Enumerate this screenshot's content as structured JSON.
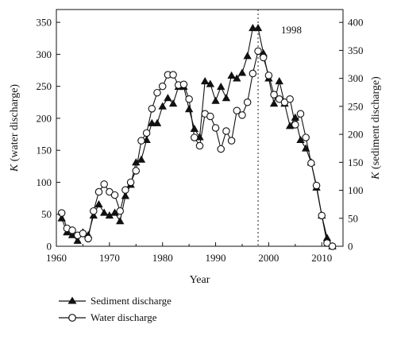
{
  "chart_data": {
    "type": "line",
    "x_axis": {
      "label": "Year",
      "range": [
        1960,
        2014
      ],
      "ticks": [
        1960,
        1970,
        1980,
        1990,
        2000,
        2010
      ]
    },
    "y_axis_left": {
      "label": "K (water discharge)",
      "label_italic_part": "K",
      "label_rest": " (water discharge)",
      "range": [
        0,
        370
      ],
      "ticks": [
        0,
        50,
        100,
        150,
        200,
        250,
        300,
        350
      ]
    },
    "y_axis_right": {
      "label": "K (sediment discharge)",
      "label_italic_part": "K",
      "label_rest": " (sediment discharge)",
      "range": [
        0,
        423
      ],
      "ticks": [
        0,
        50,
        100,
        150,
        200,
        250,
        300,
        350,
        400
      ]
    },
    "annotation": {
      "text": "1998",
      "x": 1998,
      "style": "dotted vertical line"
    },
    "legend": {
      "placement": "bottom-left"
    },
    "series": [
      {
        "name": "Sediment discharge",
        "axis": "right",
        "marker": "filled-triangle",
        "x": [
          1961,
          1962,
          1963,
          1964,
          1965,
          1966,
          1967,
          1968,
          1969,
          1970,
          1971,
          1972,
          1973,
          1974,
          1975,
          1976,
          1977,
          1978,
          1979,
          1980,
          1981,
          1982,
          1983,
          1984,
          1985,
          1986,
          1987,
          1988,
          1989,
          1990,
          1991,
          1992,
          1993,
          1994,
          1995,
          1996,
          1997,
          1998,
          1999,
          2000,
          2001,
          2002,
          2003,
          2004,
          2005,
          2006,
          2007,
          2008,
          2009,
          2010,
          2011,
          2012
        ],
        "y": [
          50,
          25,
          20,
          10,
          25,
          20,
          55,
          75,
          60,
          55,
          60,
          45,
          90,
          110,
          150,
          155,
          190,
          220,
          220,
          250,
          265,
          255,
          285,
          285,
          245,
          210,
          195,
          295,
          290,
          260,
          285,
          265,
          305,
          300,
          310,
          340,
          390,
          390,
          345,
          300,
          255,
          295,
          255,
          215,
          230,
          190,
          175,
          150,
          105,
          55,
          15,
          0
        ]
      },
      {
        "name": "Water discharge",
        "axis": "left",
        "marker": "open-circle",
        "x": [
          1961,
          1962,
          1963,
          1964,
          1965,
          1966,
          1967,
          1968,
          1969,
          1970,
          1971,
          1972,
          1973,
          1974,
          1975,
          1976,
          1977,
          1978,
          1979,
          1980,
          1981,
          1982,
          1983,
          1984,
          1985,
          1986,
          1987,
          1988,
          1989,
          1990,
          1991,
          1992,
          1993,
          1994,
          1995,
          1996,
          1997,
          1998,
          1999,
          2000,
          2001,
          2002,
          2003,
          2004,
          2005,
          2006,
          2007,
          2008,
          2009,
          2010,
          2011,
          2012
        ],
        "y": [
          52,
          28,
          25,
          17,
          20,
          12,
          55,
          85,
          97,
          85,
          80,
          55,
          88,
          100,
          118,
          165,
          177,
          215,
          240,
          250,
          268,
          268,
          252,
          253,
          230,
          170,
          157,
          207,
          203,
          185,
          152,
          180,
          165,
          212,
          205,
          225,
          270,
          305,
          295,
          267,
          237,
          230,
          225,
          230,
          190,
          207,
          170,
          130,
          95,
          48,
          5,
          0
        ]
      }
    ]
  }
}
